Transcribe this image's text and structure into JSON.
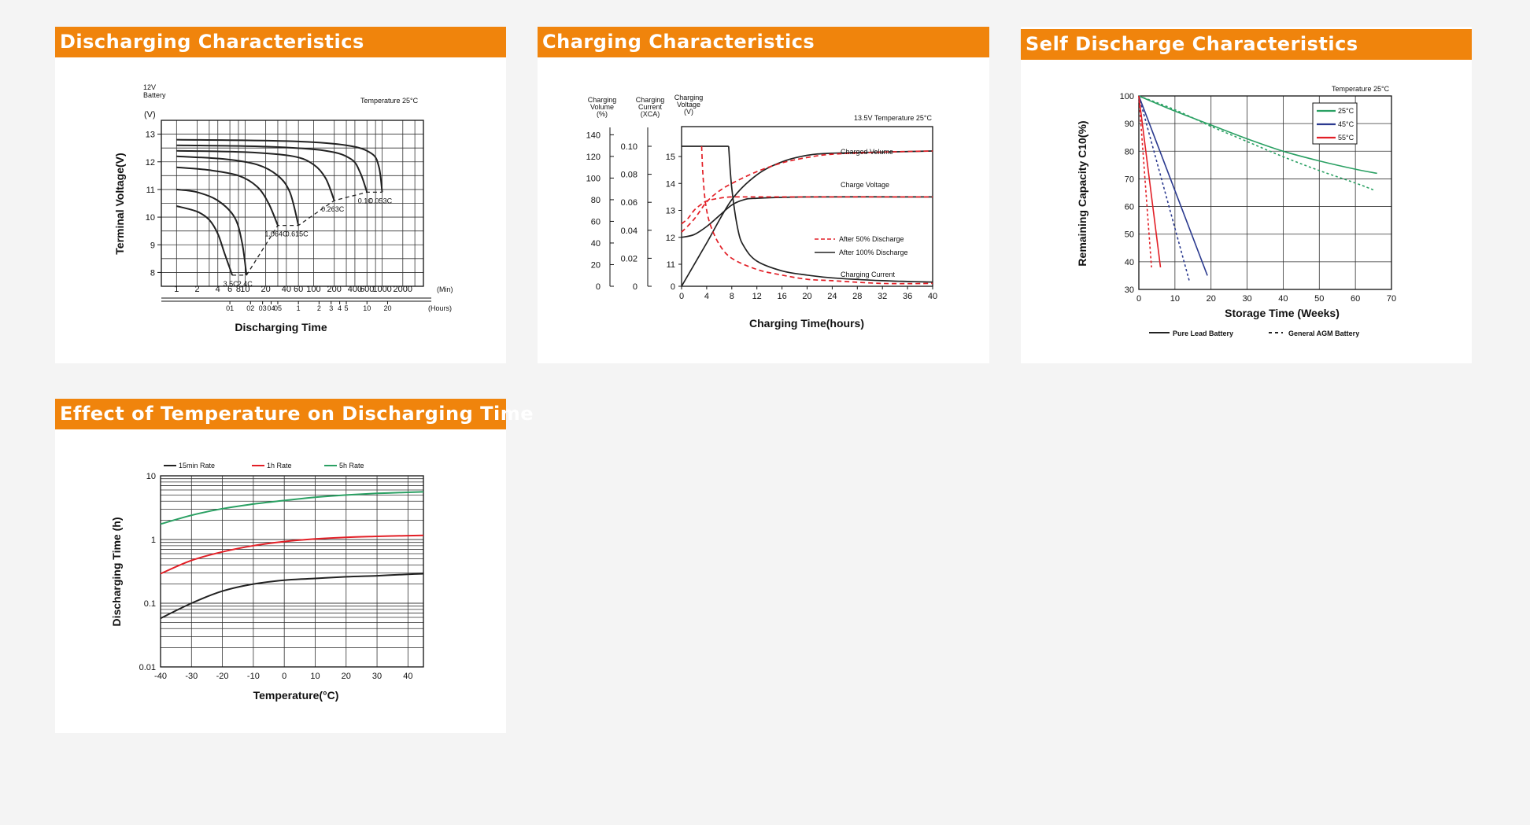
{
  "colors": {
    "header": "#f0840c",
    "green": "#2aa063",
    "navy": "#2b3a8f",
    "red": "#e21f26",
    "black": "#222222"
  },
  "cards": {
    "discharging": {
      "title": "Discharging Characteristics"
    },
    "charging": {
      "title": "Charging Characteristics"
    },
    "self_discharge": {
      "title": "Self Discharge Characteristics"
    },
    "temperature": {
      "title": "Effect of Temperature on Discharging Time"
    }
  },
  "chart_data": [
    {
      "id": "discharging",
      "type": "line",
      "battery_label": "12V\nBattery",
      "unit_label": "(V)",
      "note": "Temperature 25°C",
      "ylabel": "Terminal Voltage(V)",
      "xlabel": "Discharging Time",
      "ylim": [
        7.5,
        13.5
      ],
      "yticks": [
        "8",
        "9",
        "10",
        "11",
        "12",
        "13"
      ],
      "min_ticks": [
        "1",
        "2",
        "4",
        "6",
        "8",
        "10",
        "20",
        "40",
        "60",
        "100",
        "200",
        "400",
        "600",
        "1000",
        "2000"
      ],
      "min_unit": "(Min)",
      "hour_ticks": [
        "01",
        "02",
        "03",
        "04",
        "05",
        "1",
        "2",
        "3",
        "4",
        "5",
        "10",
        "20"
      ],
      "hour_unit": "(Hours)",
      "grid": true,
      "series": [
        {
          "name": "3.5C",
          "x_min": [
            1,
            2,
            3,
            4,
            5,
            6.5
          ],
          "y": [
            10.4,
            10.2,
            9.9,
            9.4,
            8.7,
            7.9
          ]
        },
        {
          "name": "2.4C",
          "x_min": [
            1,
            2,
            4,
            7,
            9,
            10.5
          ],
          "y": [
            11.0,
            10.9,
            10.6,
            10.0,
            9.1,
            7.9
          ]
        },
        {
          "name": "1.064C",
          "x_min": [
            1,
            3,
            8,
            15,
            22,
            30
          ],
          "y": [
            11.8,
            11.7,
            11.5,
            11.1,
            10.5,
            9.7
          ]
        },
        {
          "name": "0.615C",
          "x_min": [
            1,
            5,
            15,
            30,
            45,
            60
          ],
          "y": [
            12.2,
            12.1,
            11.9,
            11.5,
            10.9,
            9.7
          ]
        },
        {
          "name": "0.263C",
          "x_min": [
            1,
            10,
            50,
            100,
            150,
            200
          ],
          "y": [
            12.4,
            12.35,
            12.2,
            11.9,
            11.4,
            10.6
          ]
        },
        {
          "name": "0.1C",
          "x_min": [
            1,
            20,
            150,
            350,
            480,
            600
          ],
          "y": [
            12.6,
            12.55,
            12.4,
            12.1,
            11.6,
            10.9
          ]
        },
        {
          "name": "0.053C",
          "x_min": [
            1,
            40,
            300,
            700,
            900,
            1000
          ],
          "y": [
            12.8,
            12.75,
            12.6,
            12.3,
            11.8,
            10.9
          ]
        }
      ],
      "cutoff": {
        "x_min": [
          6.5,
          10.5,
          30,
          60,
          200,
          600,
          1000
        ],
        "y": [
          7.9,
          7.9,
          9.7,
          9.7,
          10.6,
          10.9,
          10.9
        ]
      }
    },
    {
      "id": "charging",
      "type": "line",
      "ylabel_volume": "Charging\nVolume\n(%)",
      "ylabel_current": "Charging\nCurrent\n(XCA)",
      "ylabel_voltage": "Charging\nVoltage\n(V)",
      "note": "13.5V   Temperature 25°C",
      "xlabel": "Charging Time(hours)",
      "x": [
        "0",
        "4",
        "8",
        "12",
        "16",
        "20",
        "24",
        "28",
        "32",
        "36",
        "40"
      ],
      "volume_ticks": [
        "0",
        "20",
        "40",
        "60",
        "80",
        "100",
        "120",
        "140"
      ],
      "current_ticks": [
        "0",
        "0.02",
        "0.04",
        "0.06",
        "0.08",
        "0.10"
      ],
      "voltage_ticks": [
        "0",
        "11",
        "12",
        "13",
        "14",
        "15"
      ],
      "labels": {
        "charged_volume": "Charged Volume",
        "charge_voltage": "Charge Voltage",
        "charging_current": "Charging Current"
      },
      "legend": [
        "After 50% Discharge",
        "After 100% Discharge"
      ],
      "series": [
        {
          "name": "After 100% Discharge",
          "kind": "volume",
          "x": [
            0,
            4,
            8,
            12,
            16,
            20,
            24,
            32,
            40
          ],
          "y": [
            0,
            40,
            80,
            103,
            115,
            121,
            123,
            124,
            125
          ]
        },
        {
          "name": "After 50% Discharge",
          "kind": "volume",
          "x": [
            0,
            2,
            4,
            6,
            8,
            12,
            16,
            20,
            24,
            32,
            40
          ],
          "y": [
            50,
            62,
            78,
            88,
            95,
            106,
            114,
            119,
            122,
            124,
            125
          ]
        },
        {
          "name": "After 100% Discharge",
          "kind": "voltage",
          "x": [
            0,
            2,
            4,
            6,
            8,
            10,
            12,
            20,
            40
          ],
          "y": [
            12.0,
            12.1,
            12.4,
            12.8,
            13.2,
            13.4,
            13.45,
            13.5,
            13.5
          ]
        },
        {
          "name": "After 50% Discharge",
          "kind": "voltage",
          "x": [
            0,
            1,
            2,
            3,
            4,
            6,
            8,
            12,
            40
          ],
          "y": [
            12.5,
            12.7,
            13.0,
            13.2,
            13.35,
            13.45,
            13.5,
            13.5,
            13.5
          ]
        },
        {
          "name": "After 100% Discharge",
          "kind": "current",
          "x": [
            0,
            7.5,
            8,
            9,
            10,
            12,
            16,
            20,
            24,
            32,
            40
          ],
          "y": [
            0.1,
            0.1,
            0.07,
            0.04,
            0.028,
            0.018,
            0.011,
            0.008,
            0.006,
            0.004,
            0.003
          ]
        },
        {
          "name": "After 50% Discharge",
          "kind": "current",
          "x": [
            3.2,
            3.4,
            3.8,
            4.5,
            6,
            8,
            12,
            16,
            20,
            24,
            32,
            40
          ],
          "y": [
            0.1,
            0.08,
            0.06,
            0.045,
            0.03,
            0.02,
            0.012,
            0.008,
            0.005,
            0.004,
            0.002,
            0.002
          ]
        }
      ]
    },
    {
      "id": "self_discharge",
      "type": "line",
      "note": "Temperature 25°C",
      "ylabel": "Remaining Capacity C10(%)",
      "xlabel": "Storage Time (Weeks)",
      "x": [
        "0",
        "10",
        "20",
        "30",
        "40",
        "50",
        "60",
        "70"
      ],
      "yticks": [
        "30",
        "40",
        "50",
        "60",
        "70",
        "80",
        "90",
        "100"
      ],
      "xlim": [
        0,
        70
      ],
      "ylim": [
        30,
        100
      ],
      "legend_top": [
        "25°C",
        "45°C",
        "55°C"
      ],
      "legend_bottom": [
        "Pure Lead Battery",
        "General AGM Battery"
      ],
      "series": [
        {
          "name": "25°C",
          "battery": "Pure Lead Battery",
          "x": [
            0,
            10,
            20,
            30,
            40,
            50,
            60,
            66
          ],
          "y": [
            100,
            94.5,
            89.5,
            84.5,
            80,
            76.5,
            73.5,
            72
          ]
        },
        {
          "name": "25°C",
          "battery": "General AGM Battery",
          "x": [
            0,
            10,
            20,
            30,
            40,
            50,
            60,
            65
          ],
          "y": [
            100,
            95,
            89,
            83.5,
            78,
            73,
            68.5,
            66
          ]
        },
        {
          "name": "45°C",
          "battery": "Pure Lead Battery",
          "x": [
            0,
            19
          ],
          "y": [
            100,
            35
          ]
        },
        {
          "name": "45°C",
          "battery": "General AGM Battery",
          "x": [
            0,
            14
          ],
          "y": [
            100,
            33
          ]
        },
        {
          "name": "55°C",
          "battery": "Pure Lead Battery",
          "x": [
            0,
            6
          ],
          "y": [
            100,
            38
          ]
        },
        {
          "name": "55°C",
          "battery": "General AGM Battery",
          "x": [
            0,
            3.5
          ],
          "y": [
            100,
            38
          ]
        }
      ]
    },
    {
      "id": "temperature",
      "type": "line",
      "ylabel": "Discharging Time (h)",
      "xlabel": "Temperature(°C)",
      "x": [
        "-40",
        "-30",
        "-20",
        "-10",
        "0",
        "10",
        "20",
        "30",
        "40"
      ],
      "yticks": [
        "0.01",
        "0.1",
        "1",
        "10"
      ],
      "xlim": [
        -40,
        45
      ],
      "ylim": [
        0.01,
        10
      ],
      "yscale": "log",
      "legend": [
        "15min Rate",
        "1h Rate",
        "5h Rate"
      ],
      "series": [
        {
          "name": "15min Rate",
          "x": [
            -40,
            -30,
            -20,
            -10,
            0,
            10,
            20,
            30,
            40,
            45
          ],
          "y": [
            0.058,
            0.1,
            0.155,
            0.2,
            0.23,
            0.245,
            0.26,
            0.27,
            0.285,
            0.29
          ]
        },
        {
          "name": "1h Rate",
          "x": [
            -40,
            -30,
            -20,
            -10,
            0,
            10,
            20,
            30,
            40,
            45
          ],
          "y": [
            0.29,
            0.47,
            0.64,
            0.8,
            0.93,
            1.02,
            1.08,
            1.12,
            1.15,
            1.16
          ]
        },
        {
          "name": "5h Rate",
          "x": [
            -40,
            -30,
            -20,
            -10,
            0,
            10,
            20,
            30,
            40,
            45
          ],
          "y": [
            1.75,
            2.4,
            3.05,
            3.6,
            4.1,
            4.6,
            5.0,
            5.3,
            5.5,
            5.6
          ]
        }
      ]
    }
  ]
}
